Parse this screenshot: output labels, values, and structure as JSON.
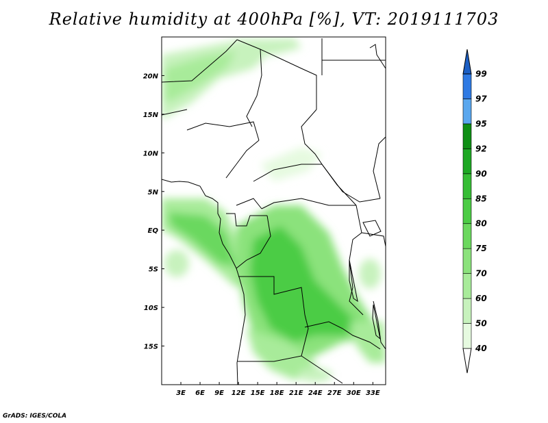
{
  "title": "Relative humidity at 400hPa [%], VT: 2019111703",
  "credit": "GrADS: IGES/COLA",
  "map": {
    "lat_labels": [
      {
        "lat": 20,
        "label": "20N"
      },
      {
        "lat": 15,
        "label": "15N"
      },
      {
        "lat": 10,
        "label": "10N"
      },
      {
        "lat": 5,
        "label": "5N"
      },
      {
        "lat": 0,
        "label": "EQ"
      },
      {
        "lat": -5,
        "label": "5S"
      },
      {
        "lat": -10,
        "label": "10S"
      },
      {
        "lat": -15,
        "label": "15S"
      }
    ],
    "lon_labels": [
      {
        "lon": 3,
        "label": "3E"
      },
      {
        "lon": 6,
        "label": "6E"
      },
      {
        "lon": 9,
        "label": "9E"
      },
      {
        "lon": 12,
        "label": "12E"
      },
      {
        "lon": 15,
        "label": "15E"
      },
      {
        "lon": 18,
        "label": "18E"
      },
      {
        "lon": 21,
        "label": "21E"
      },
      {
        "lon": 24,
        "label": "24E"
      },
      {
        "lon": 27,
        "label": "27E"
      },
      {
        "lon": 30,
        "label": "30E"
      },
      {
        "lon": 33,
        "label": "33E"
      }
    ],
    "lon_range": [
      0,
      35
    ],
    "lat_range": [
      -20,
      25
    ]
  },
  "colorbar": {
    "levels": [
      "40",
      "50",
      "60",
      "70",
      "75",
      "80",
      "85",
      "90",
      "92",
      "95",
      "97",
      "99"
    ],
    "colors": [
      "#ffffff",
      "#e6fae0",
      "#c7f2bd",
      "#a8eb9a",
      "#8be27c",
      "#6bd85e",
      "#4ccc45",
      "#36bd35",
      "#1ea824",
      "#0f8f15",
      "#5aa7ee",
      "#2f7ae3",
      "#1c5fc4"
    ]
  }
}
